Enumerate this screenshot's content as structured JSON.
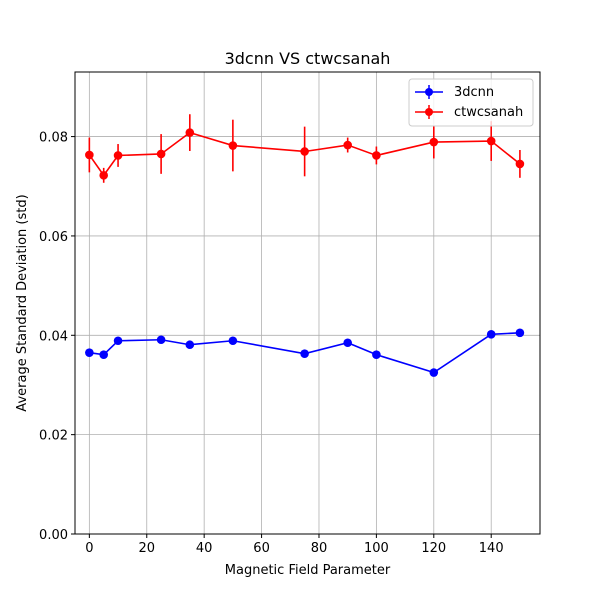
{
  "chart_data": {
    "type": "line",
    "title": "3dcnn VS ctwcsanah",
    "xlabel": "Magnetic Field Parameter",
    "ylabel": "Average Standard Deviation (std)",
    "xlim": [
      -5,
      157
    ],
    "ylim": [
      0,
      0.093
    ],
    "xticks": [
      0,
      20,
      40,
      60,
      80,
      100,
      120,
      140
    ],
    "xtick_labels": [
      "0",
      "20",
      "40",
      "60",
      "80",
      "100",
      "120",
      "140"
    ],
    "yticks": [
      0,
      0.02,
      0.04,
      0.06,
      0.08
    ],
    "ytick_labels": [
      "0.00",
      "0.02",
      "0.04",
      "0.06",
      "0.08"
    ],
    "grid": true,
    "legend_position": "upper-right",
    "x": [
      0,
      5,
      10,
      25,
      35,
      50,
      75,
      90,
      100,
      120,
      140,
      150
    ],
    "series": [
      {
        "name": "3dcnn",
        "color": "#0000ff",
        "values": [
          0.0365,
          0.0361,
          0.0389,
          0.0391,
          0.0381,
          0.0389,
          0.0363,
          0.0385,
          0.0361,
          0.0325,
          0.0402,
          0.0405
        ],
        "errors": [
          0,
          0,
          0,
          0,
          0,
          0,
          0,
          0,
          0,
          0,
          0,
          0
        ]
      },
      {
        "name": "ctwcsanah",
        "color": "#ff0000",
        "values": [
          0.0763,
          0.0722,
          0.0762,
          0.0765,
          0.0808,
          0.0782,
          0.077,
          0.0783,
          0.0762,
          0.0789,
          0.0791,
          0.0745
        ],
        "errors": [
          0.0035,
          0.0015,
          0.0023,
          0.004,
          0.0037,
          0.0052,
          0.005,
          0.0015,
          0.0018,
          0.0033,
          0.004,
          0.0028
        ]
      }
    ]
  }
}
